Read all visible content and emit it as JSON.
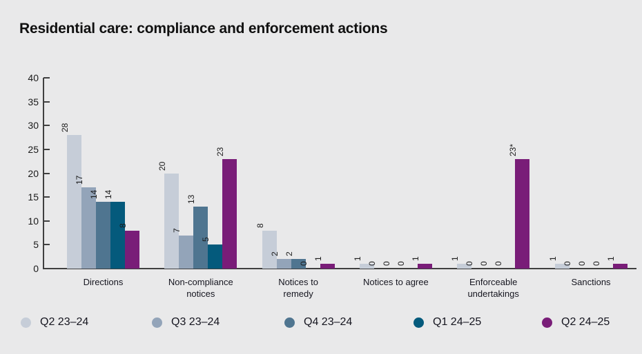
{
  "page": {
    "background": "#e9e9ea"
  },
  "chart_data": {
    "type": "bar",
    "title": "Residential care: compliance and enforcement actions",
    "categories": [
      [
        "Directions"
      ],
      [
        "Non-compliance",
        "notices"
      ],
      [
        "Notices to",
        "remedy"
      ],
      [
        "Notices to agree"
      ],
      [
        "Enforceable",
        "undertakings"
      ],
      [
        "Sanctions"
      ]
    ],
    "series": [
      {
        "name": "Q2 23–24",
        "color": "#c6cdd8",
        "values": [
          28,
          20,
          8,
          1,
          1,
          1
        ],
        "labels": [
          "28",
          "20",
          "8",
          "1",
          "1",
          "1"
        ]
      },
      {
        "name": "Q3 23–24",
        "color": "#93a4b9",
        "values": [
          17,
          7,
          2,
          0,
          0,
          0
        ],
        "labels": [
          "17",
          "7",
          "2",
          "0",
          "0",
          "0"
        ]
      },
      {
        "name": "Q4 23–24",
        "color": "#4f7590",
        "values": [
          14,
          13,
          2,
          0,
          0,
          0
        ],
        "labels": [
          "14",
          "13",
          "2",
          "0",
          "0",
          "0"
        ]
      },
      {
        "name": "Q1 24–25",
        "color": "#045a7c",
        "values": [
          14,
          5,
          0,
          0,
          0,
          0
        ],
        "labels": [
          "14",
          "5",
          "0",
          "0",
          "0",
          "0"
        ]
      },
      {
        "name": "Q2 24–25",
        "color": "#791d78",
        "values": [
          8,
          23,
          1,
          1,
          23,
          1
        ],
        "labels": [
          "8",
          "23",
          "1",
          "1",
          "23*",
          "1"
        ]
      }
    ],
    "ylim": [
      0,
      40
    ],
    "yticks": [
      0,
      5,
      10,
      15,
      20,
      25,
      30,
      35,
      40
    ],
    "xlabel": "",
    "ylabel": "",
    "grid": false,
    "legend_position": "bottom",
    "axis_color": "#3f3f3f",
    "text_color": "#1a1a1a"
  }
}
